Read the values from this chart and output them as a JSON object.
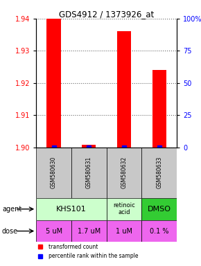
{
  "title": "GDS4912 / 1373926_at",
  "samples": [
    "GSM580630",
    "GSM580631",
    "GSM580632",
    "GSM580633"
  ],
  "red_values": [
    1.94,
    1.9008,
    1.936,
    1.924
  ],
  "blue_values_pct": [
    3,
    7,
    3,
    3
  ],
  "ylim": [
    1.9,
    1.94
  ],
  "yticks_left": [
    1.9,
    1.91,
    1.92,
    1.93,
    1.94
  ],
  "yticks_right": [
    0,
    25,
    50,
    75,
    100
  ],
  "bar_width": 0.4,
  "agent_data": [
    {
      "cols": [
        0,
        1
      ],
      "text": "KHS101",
      "color": "#ccffcc",
      "fontsize": 8
    },
    {
      "cols": [
        2,
        2
      ],
      "text": "retinoic\nacid",
      "color": "#ccffcc",
      "fontsize": 6
    },
    {
      "cols": [
        3,
        3
      ],
      "text": "DMSO",
      "color": "#33cc33",
      "fontsize": 8
    }
  ],
  "dose_labels": [
    "5 uM",
    "1.7 uM",
    "1 uM",
    "0.1 %"
  ],
  "dose_color": "#ee66ee",
  "sample_bg": "#c8c8c8",
  "legend_red": "transformed count",
  "legend_blue": "percentile rank within the sample",
  "left_axis_color": "red",
  "right_axis_color": "blue",
  "fig_width": 2.9,
  "fig_height": 3.84,
  "dpi": 100
}
